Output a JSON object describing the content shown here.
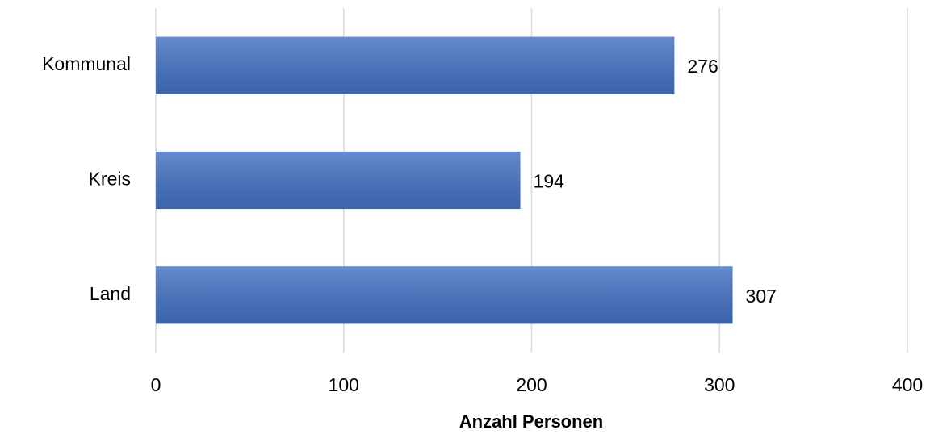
{
  "chart_data": {
    "type": "bar",
    "orientation": "horizontal",
    "x_label": "Anzahl Personen",
    "categories": [
      "Kommunal",
      "Kreis",
      "Land"
    ],
    "values": [
      276,
      194,
      307
    ],
    "color": "#4472c4",
    "xlim": [
      0,
      400
    ],
    "xticks": [
      0,
      100,
      200,
      300,
      400
    ],
    "grid": true
  }
}
